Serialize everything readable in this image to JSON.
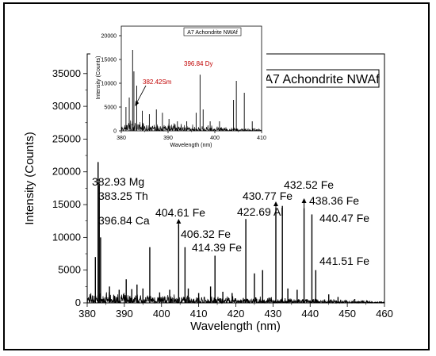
{
  "chart_data": {
    "type": "line",
    "xlabel": "Wavelength (nm)",
    "ylabel": "Intensity (Counts)",
    "xlim": [
      380,
      460
    ],
    "ylim": [
      0,
      38000
    ],
    "x_ticks": [
      "380",
      "390",
      "400",
      "410",
      "420",
      "430",
      "440",
      "450",
      "460"
    ],
    "y_ticks": [
      "0",
      "5000",
      "10000",
      "15000",
      "20000",
      "25000",
      "30000",
      "35000"
    ],
    "legend_title": "A7 Achondrite NWAf",
    "peaks": [
      {
        "x": 382.2,
        "y": 7000
      },
      {
        "x": 382.93,
        "y": 21500
      },
      {
        "x": 383.25,
        "y": 18000
      },
      {
        "x": 383.6,
        "y": 10000
      },
      {
        "x": 386.0,
        "y": 2500
      },
      {
        "x": 388.6,
        "y": 2000
      },
      {
        "x": 390.5,
        "y": 3600
      },
      {
        "x": 392.0,
        "y": 2100
      },
      {
        "x": 393.4,
        "y": 2800
      },
      {
        "x": 395.0,
        "y": 2200
      },
      {
        "x": 396.84,
        "y": 8500
      },
      {
        "x": 399.5,
        "y": 1600
      },
      {
        "x": 402.2,
        "y": 2000
      },
      {
        "x": 404.61,
        "y": 12000
      },
      {
        "x": 406.32,
        "y": 8500
      },
      {
        "x": 407.2,
        "y": 2200
      },
      {
        "x": 410.0,
        "y": 1500
      },
      {
        "x": 413.2,
        "y": 2500
      },
      {
        "x": 414.39,
        "y": 7200
      },
      {
        "x": 416.5,
        "y": 1700
      },
      {
        "x": 419.0,
        "y": 1500
      },
      {
        "x": 422.69,
        "y": 12800
      },
      {
        "x": 425.0,
        "y": 4500
      },
      {
        "x": 427.2,
        "y": 5000
      },
      {
        "x": 430.77,
        "y": 14500
      },
      {
        "x": 432.52,
        "y": 14800
      },
      {
        "x": 434.0,
        "y": 2200
      },
      {
        "x": 436.5,
        "y": 2000
      },
      {
        "x": 438.36,
        "y": 14500
      },
      {
        "x": 440.47,
        "y": 13500
      },
      {
        "x": 441.51,
        "y": 5000
      },
      {
        "x": 445.0,
        "y": 1300
      },
      {
        "x": 447.5,
        "y": 900
      },
      {
        "x": 452.0,
        "y": 600
      }
    ],
    "labels": [
      {
        "text": "382.93 Mg",
        "x": 382.93,
        "y": 21500
      },
      {
        "text": "383.25 Th",
        "x": 383.25,
        "y": 18000
      },
      {
        "text": "396.84 Ca",
        "x": 396.84,
        "y": 8500
      },
      {
        "text": "404.61 Fe",
        "x": 404.61,
        "y": 12000
      },
      {
        "text": "406.32 Fe",
        "x": 406.32,
        "y": 8500
      },
      {
        "text": "414.39 Fe",
        "x": 414.39,
        "y": 7200
      },
      {
        "text": "422.69 Al",
        "x": 422.69,
        "y": 12800
      },
      {
        "text": "430.77 Fe",
        "x": 430.77,
        "y": 14500
      },
      {
        "text": "432.52 Fe",
        "x": 432.52,
        "y": 14800
      },
      {
        "text": "438.36 Fe",
        "x": 438.36,
        "y": 14500
      },
      {
        "text": "440.47 Fe",
        "x": 440.47,
        "y": 13500
      },
      {
        "text": "441.51 Fe",
        "x": 441.51,
        "y": 5000
      }
    ],
    "inset": {
      "title": "A7 Achondrite NWAf",
      "xlabel": "Wavelength (nm)",
      "ylabel": "Intensity (Counts)",
      "xlim": [
        380,
        410
      ],
      "ylim": [
        0,
        22000
      ],
      "x_ticks": [
        "380",
        "390",
        "400",
        "410"
      ],
      "y_ticks": [
        "0",
        "5000",
        "10000",
        "15000",
        "20000"
      ],
      "peaks": [
        {
          "x": 381.0,
          "y": 5000
        },
        {
          "x": 381.7,
          "y": 7000
        },
        {
          "x": 382.42,
          "y": 17000
        },
        {
          "x": 382.7,
          "y": 12500
        },
        {
          "x": 383.3,
          "y": 9500
        },
        {
          "x": 384.5,
          "y": 4200
        },
        {
          "x": 386.0,
          "y": 3500
        },
        {
          "x": 387.5,
          "y": 4500
        },
        {
          "x": 388.8,
          "y": 3800
        },
        {
          "x": 390.2,
          "y": 2500
        },
        {
          "x": 392.0,
          "y": 2000
        },
        {
          "x": 394.0,
          "y": 2000
        },
        {
          "x": 396.0,
          "y": 3800
        },
        {
          "x": 396.84,
          "y": 11800
        },
        {
          "x": 397.5,
          "y": 4500
        },
        {
          "x": 399.0,
          "y": 2000
        },
        {
          "x": 401.0,
          "y": 2000
        },
        {
          "x": 404.0,
          "y": 6500
        },
        {
          "x": 404.6,
          "y": 10500
        },
        {
          "x": 406.3,
          "y": 8000
        },
        {
          "x": 408.0,
          "y": 2000
        }
      ],
      "annotations": [
        {
          "text": "382.42Sm",
          "x": 382.42,
          "y": 17000
        },
        {
          "text": "396.84 Dy",
          "x": 396.84,
          "y": 11800
        }
      ]
    }
  }
}
